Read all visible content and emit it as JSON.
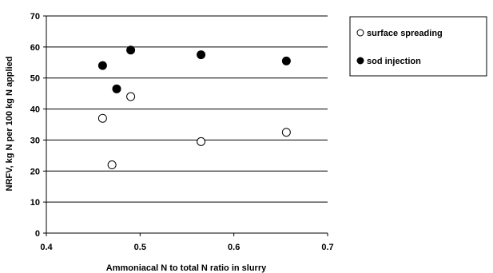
{
  "chart_data": {
    "type": "scatter",
    "xlabel": "Ammoniacal N to total N ratio in slurry",
    "ylabel": "NRFV, kg N per 100 kg N applied",
    "xlim": [
      0.4,
      0.7
    ],
    "ylim": [
      0,
      70
    ],
    "xticks": [
      "0.4",
      "0.5",
      "0.6",
      "0.7"
    ],
    "yticks": [
      "0",
      "10",
      "20",
      "30",
      "40",
      "50",
      "60",
      "70"
    ],
    "grid": "horizontal",
    "legend_position": "top-right",
    "series": [
      {
        "name": "surface spreading",
        "marker": "open-circle",
        "points": [
          {
            "x": 0.46,
            "y": 37
          },
          {
            "x": 0.47,
            "y": 22
          },
          {
            "x": 0.49,
            "y": 44
          },
          {
            "x": 0.565,
            "y": 29.5
          },
          {
            "x": 0.656,
            "y": 32.5
          }
        ]
      },
      {
        "name": "sod injection",
        "marker": "filled-circle",
        "points": [
          {
            "x": 0.46,
            "y": 54
          },
          {
            "x": 0.475,
            "y": 46.5
          },
          {
            "x": 0.49,
            "y": 59
          },
          {
            "x": 0.565,
            "y": 57.5
          },
          {
            "x": 0.656,
            "y": 55.5
          }
        ]
      }
    ],
    "colors": {
      "open_fill": "#ffffff",
      "filled_fill": "#000000",
      "stroke": "#000000"
    }
  }
}
